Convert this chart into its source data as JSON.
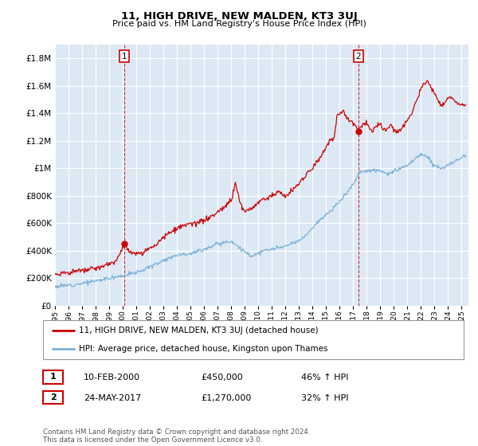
{
  "title": "11, HIGH DRIVE, NEW MALDEN, KT3 3UJ",
  "subtitle": "Price paid vs. HM Land Registry's House Price Index (HPI)",
  "ytick_values": [
    0,
    200000,
    400000,
    600000,
    800000,
    1000000,
    1200000,
    1400000,
    1600000,
    1800000
  ],
  "ylim": [
    0,
    1900000
  ],
  "xlim_start": 1995.0,
  "xlim_end": 2025.5,
  "sale1_x": 2000.11,
  "sale1_y": 450000,
  "sale2_x": 2017.39,
  "sale2_y": 1270000,
  "red_line_color": "#cc0000",
  "blue_line_color": "#7ab0d4",
  "plot_bg_color": "#dce9f5",
  "grid_color": "#ffffff",
  "background_color": "#ffffff",
  "legend_label_red": "11, HIGH DRIVE, NEW MALDEN, KT3 3UJ (detached house)",
  "legend_label_blue": "HPI: Average price, detached house, Kingston upon Thames",
  "footnote": "Contains HM Land Registry data © Crown copyright and database right 2024.\nThis data is licensed under the Open Government Licence v3.0.",
  "sale1_date": "10-FEB-2000",
  "sale1_price": "£450,000",
  "sale1_hpi": "46% ↑ HPI",
  "sale2_date": "24-MAY-2017",
  "sale2_price": "£1,270,000",
  "sale2_hpi": "32% ↑ HPI",
  "xtick_years": [
    1995,
    1996,
    1997,
    1998,
    1999,
    2000,
    2001,
    2002,
    2003,
    2004,
    2005,
    2006,
    2007,
    2008,
    2009,
    2010,
    2011,
    2012,
    2013,
    2014,
    2015,
    2016,
    2017,
    2018,
    2019,
    2020,
    2021,
    2022,
    2023,
    2024,
    2025
  ]
}
